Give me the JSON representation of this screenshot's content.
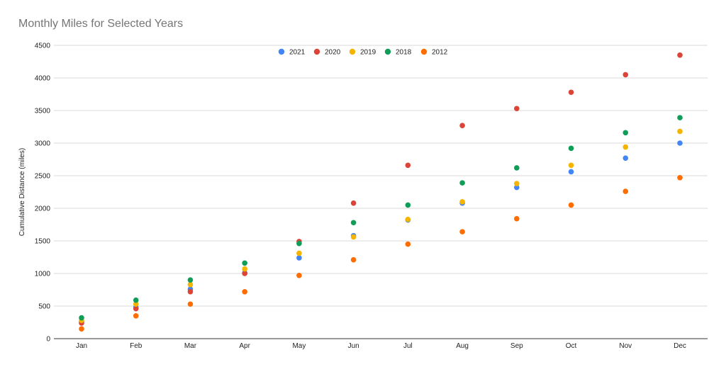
{
  "chart_data": {
    "type": "scatter",
    "title": "Monthly Miles for Selected Years",
    "xlabel": "",
    "ylabel": "Cumulative Distance (miles)",
    "categories": [
      "Jan",
      "Feb",
      "Mar",
      "Apr",
      "May",
      "Jun",
      "Jul",
      "Aug",
      "Sep",
      "Oct",
      "Nov",
      "Dec"
    ],
    "ylim": [
      0,
      4500
    ],
    "yticks": [
      0,
      500,
      1000,
      1500,
      2000,
      2500,
      3000,
      3500,
      4000,
      4500
    ],
    "grid": true,
    "legend_position": "top",
    "series": [
      {
        "name": "2021",
        "color": "#4285f4",
        "values": [
          260,
          480,
          760,
          1010,
          1240,
          1580,
          1820,
          2080,
          2320,
          2560,
          2770,
          3000
        ]
      },
      {
        "name": "2020",
        "color": "#db4437",
        "values": [
          240,
          460,
          720,
          1000,
          1490,
          2080,
          2660,
          3270,
          3530,
          3780,
          4050,
          4350
        ]
      },
      {
        "name": "2019",
        "color": "#f4b400",
        "values": [
          280,
          530,
          830,
          1070,
          1310,
          1560,
          1830,
          2100,
          2380,
          2660,
          2940,
          3180
        ]
      },
      {
        "name": "2018",
        "color": "#0f9d58",
        "values": [
          320,
          590,
          900,
          1160,
          1460,
          1780,
          2050,
          2390,
          2620,
          2920,
          3160,
          3390
        ]
      },
      {
        "name": "2012",
        "color": "#ff6d01",
        "values": [
          150,
          350,
          530,
          720,
          970,
          1210,
          1450,
          1640,
          1840,
          2050,
          2260,
          2470
        ]
      }
    ]
  }
}
